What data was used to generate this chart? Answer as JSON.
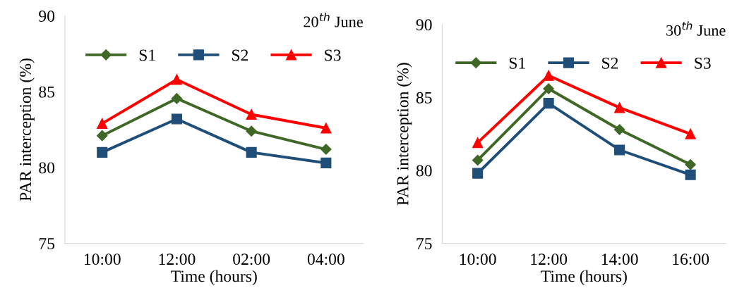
{
  "chart_data": [
    {
      "type": "line",
      "title": "20$^{th}$ June",
      "xlabel": "Time (hours)",
      "ylabel": "PAR interception (%)",
      "categories": [
        "10:00",
        "12:00",
        "02:00",
        "04:00"
      ],
      "ylim": [
        75,
        90
      ],
      "yticks": [
        75,
        80,
        85,
        90
      ],
      "grid": false,
      "legend": "top",
      "series": [
        {
          "name": "S1",
          "color": "#3f6826",
          "marker": "diamond",
          "values": [
            82.1,
            84.55,
            82.4,
            81.2
          ]
        },
        {
          "name": "S2",
          "color": "#1f4e79",
          "marker": "square",
          "values": [
            81.0,
            83.2,
            81.0,
            80.3
          ]
        },
        {
          "name": "S3",
          "color": "#ff0000",
          "marker": "triangle",
          "values": [
            82.9,
            85.8,
            83.5,
            82.6
          ]
        }
      ]
    },
    {
      "type": "line",
      "title": "30$^{th}$ June",
      "xlabel": "Time (hours)",
      "ylabel": "PAR interception (%)",
      "categories": [
        "10:00",
        "12:00",
        "14:00",
        "16:00"
      ],
      "ylim": [
        75,
        90
      ],
      "yticks": [
        75,
        80,
        85,
        90
      ],
      "grid": false,
      "legend": "top",
      "series": [
        {
          "name": "S1",
          "color": "#3f6826",
          "marker": "diamond",
          "values": [
            80.7,
            85.6,
            82.8,
            80.4
          ]
        },
        {
          "name": "S2",
          "color": "#1f4e79",
          "marker": "square",
          "values": [
            79.8,
            84.6,
            81.4,
            79.7
          ]
        },
        {
          "name": "S3",
          "color": "#ff0000",
          "marker": "triangle",
          "values": [
            81.9,
            86.5,
            84.3,
            82.5
          ]
        }
      ]
    }
  ]
}
